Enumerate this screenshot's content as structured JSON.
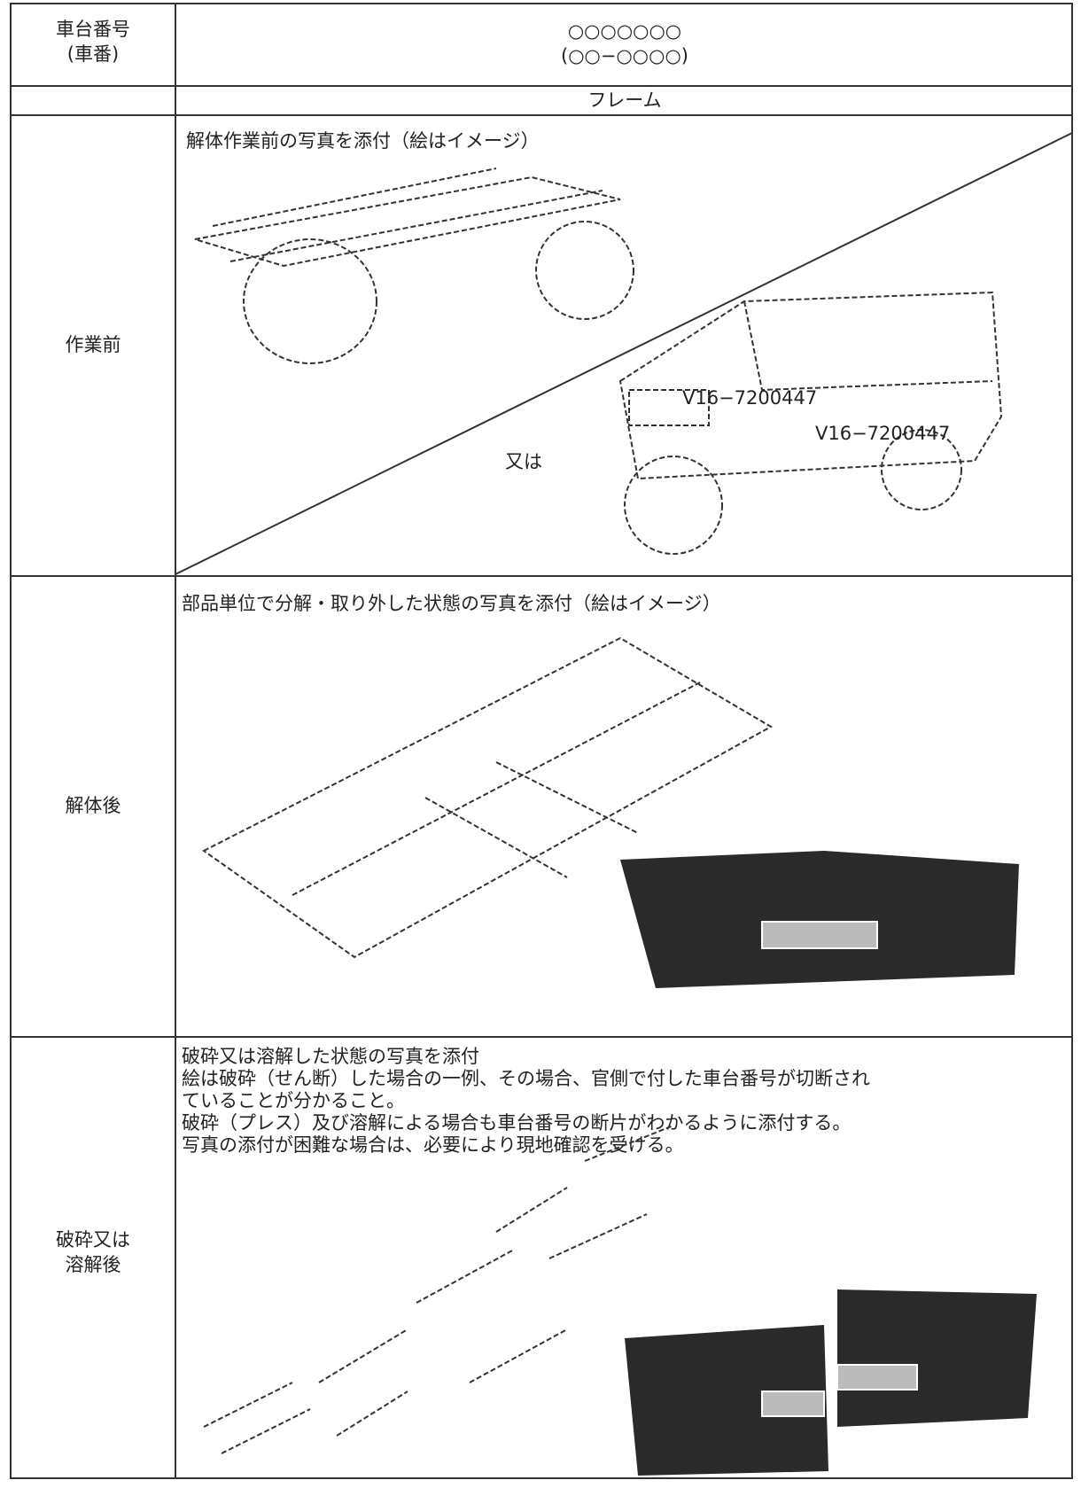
{
  "table": {
    "header": {
      "label_lines": [
        "車台番号",
        "(車番)"
      ],
      "value_lines": [
        "○○○○○○○",
        "(○○−○○○○)"
      ]
    },
    "subheader": "フレーム",
    "rows": [
      {
        "label_lines": [
          "作業前"
        ],
        "caption_lines": [
          "解体作業前の写真を添付（絵はイメージ）"
        ],
        "annotation": "又は",
        "plate": "V16−7200447"
      },
      {
        "label_lines": [
          "解体後"
        ],
        "caption_lines": [
          "部品単位で分解・取り外した状態の写真を添付（絵はイメージ）"
        ]
      },
      {
        "label_lines": [
          "破砕又は",
          "溶解後"
        ],
        "caption_lines": [
          "破砕又は溶解した状態の写真を添付",
          "絵は破砕（せん断）した場合の一例、その場合、官側で付した車台番号が切断され",
          "ていることが分かること。",
          "破砕（プレス）及び溶解による場合も車台番号の断片がわかるように添付する。",
          "写真の添付が困難な場合は、必要により現地確認を受ける。"
        ]
      }
    ]
  }
}
